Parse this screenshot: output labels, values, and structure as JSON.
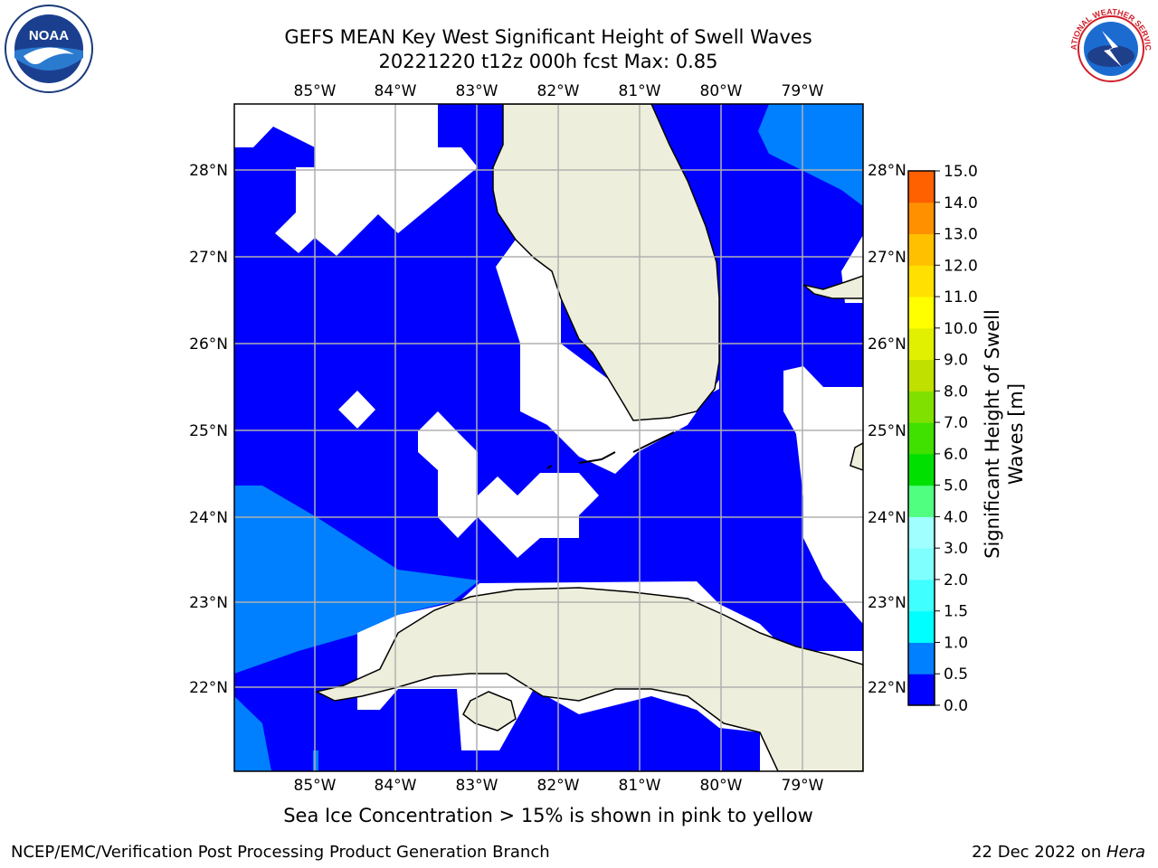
{
  "title": {
    "line1": "GEFS MEAN Key West Significant Height of Swell Waves",
    "line2": "20221220 t12z 000h fcst   Max: 0.85"
  },
  "logos": {
    "left": {
      "icon": "noaa-logo",
      "text": "NOAA"
    },
    "right": {
      "icon": "nws-logo",
      "text": "NATIONAL WEATHER SERVICE"
    }
  },
  "map": {
    "longitude_ticks": [
      "85°W",
      "84°W",
      "83°W",
      "82°W",
      "81°W",
      "80°W",
      "79°W"
    ],
    "latitude_ticks": [
      "28°N",
      "27°N",
      "26°N",
      "25°N",
      "24°N",
      "23°N",
      "22°N"
    ],
    "colors": {
      "band_0_0p5": "#0000ff",
      "band_0p5_1": "#0080ff",
      "land": "#eeeedc",
      "gridline": "#b0b0b0",
      "missing": "#ffffff"
    }
  },
  "colorbar": {
    "label": "Significant Height of Swell Waves [m]",
    "tick_labels": [
      "0.0",
      "0.5",
      "1.0",
      "1.5",
      "2.0",
      "3.0",
      "4.0",
      "5.0",
      "6.0",
      "7.0",
      "8.0",
      "9.0",
      "10.0",
      "11.0",
      "12.0",
      "13.0",
      "14.0",
      "15.0"
    ],
    "colors": [
      "#0000ff",
      "#0080ff",
      "#00ffff",
      "#40ffff",
      "#80ffff",
      "#a0ffff",
      "#50ff80",
      "#00e000",
      "#40e000",
      "#80e000",
      "#c0e000",
      "#e0f000",
      "#ffff00",
      "#ffe000",
      "#ffc000",
      "#ff9000",
      "#ff6000",
      "#ff3000",
      "#ff0000"
    ]
  },
  "caption": "Sea Ice Concentration > 15% is shown in pink to yellow",
  "footer": {
    "left": "NCEP/EMC/Verification Post Processing Product Generation Branch",
    "right_date": "22 Dec 2022 on ",
    "right_host": "Hera"
  }
}
